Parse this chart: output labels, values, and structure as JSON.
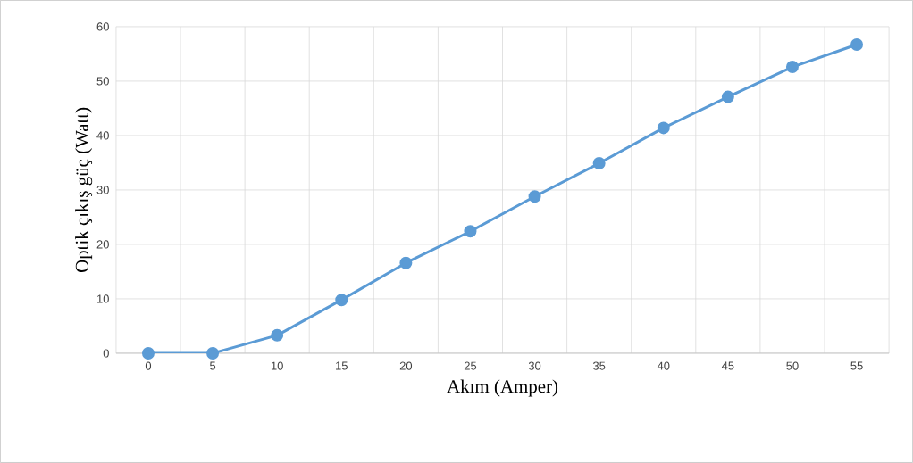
{
  "chart_data": {
    "type": "line",
    "xlabel": "Akım (Amper)",
    "ylabel": "Optik çıkış güç (Watt)",
    "categories": [
      "0",
      "5",
      "10",
      "15",
      "20",
      "25",
      "30",
      "35",
      "40",
      "45",
      "50",
      "55"
    ],
    "values": [
      0,
      0,
      3.3,
      9.8,
      16.6,
      22.4,
      28.8,
      34.9,
      41.4,
      47.1,
      52.6,
      56.7
    ],
    "color": "#5b9bd5",
    "marker": "circle",
    "line_style": "solid",
    "ylim": [
      0,
      60
    ],
    "yticks": [
      0,
      10,
      20,
      30,
      40,
      50,
      60
    ],
    "grid": true
  }
}
